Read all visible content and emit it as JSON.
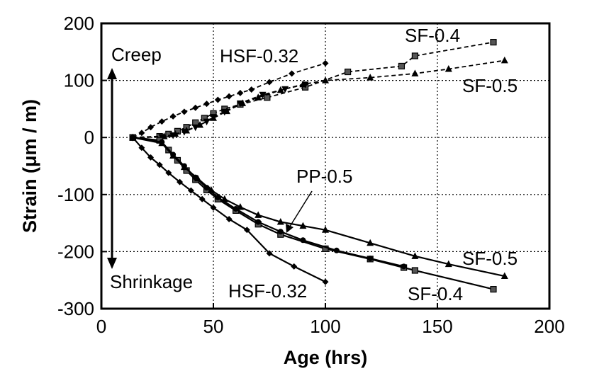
{
  "chart_data": {
    "type": "line",
    "title": "",
    "xlabel": "Age (hrs)",
    "ylabel": "Strain (μm / m)",
    "xlim": [
      0,
      200
    ],
    "ylim": [
      -300,
      200
    ],
    "x_ticks": [
      0,
      50,
      100,
      150,
      200
    ],
    "y_ticks": [
      -300,
      -200,
      -100,
      0,
      100,
      200
    ],
    "grid": true,
    "legend": "none",
    "annotations": {
      "creep": "Creep",
      "shrinkage": "Shrinkage",
      "hsf_creep": "HSF-0.32",
      "sf04_creep": "SF-0.4",
      "sf05_creep": "SF-0.5",
      "pp": "PP-0.5",
      "sf05_shrink": "SF-0.5",
      "hsf_shrink": "HSF-0.32",
      "sf04_shrink": "SF-0.4"
    },
    "series": [
      {
        "group": "creep",
        "style": "dashed",
        "marker": "diamond",
        "x": [
          14,
          18,
          22,
          27,
          32,
          37,
          42,
          47,
          52,
          57,
          62,
          67,
          75,
          85,
          100
        ],
        "y": [
          0,
          8,
          18,
          28,
          37,
          45,
          52,
          59,
          66,
          72,
          78,
          84,
          97,
          112,
          130
        ]
      },
      {
        "group": "creep",
        "style": "dashed",
        "marker": "square",
        "x": [
          14,
          26,
          30,
          34,
          38,
          42,
          46,
          50,
          55,
          62,
          74,
          91,
          110,
          134,
          140,
          175
        ],
        "y": [
          0,
          2,
          6,
          11,
          18,
          26,
          34,
          42,
          50,
          58,
          70,
          88,
          115,
          125,
          143,
          167
        ]
      },
      {
        "group": "creep",
        "style": "dashed",
        "marker": "inverted-triangle",
        "x": [
          14,
          27,
          32,
          37,
          42,
          47,
          50,
          55,
          62,
          72,
          82,
          91
        ],
        "y": [
          0,
          1,
          4,
          10,
          18,
          28,
          36,
          45,
          60,
          75,
          85,
          93
        ]
      },
      {
        "group": "creep",
        "style": "dashed",
        "marker": "triangle",
        "x": [
          14,
          28,
          33,
          38,
          44,
          50,
          56,
          63,
          70,
          80,
          90,
          100,
          120,
          140,
          155,
          180
        ],
        "y": [
          0,
          2,
          6,
          12,
          22,
          34,
          46,
          60,
          70,
          83,
          93,
          100,
          105,
          112,
          120,
          135
        ]
      },
      {
        "group": "shrinkage",
        "style": "solid",
        "marker": "diamond",
        "x": [
          14,
          18,
          22,
          26,
          30,
          35,
          40,
          45,
          50,
          57,
          65,
          75,
          86,
          100
        ],
        "y": [
          0,
          -18,
          -35,
          -48,
          -62,
          -78,
          -93,
          -108,
          -123,
          -143,
          -162,
          -203,
          -226,
          -253
        ]
      },
      {
        "group": "shrinkage",
        "style": "solid",
        "marker": "square",
        "x": [
          14,
          26,
          30,
          34,
          38,
          42,
          47,
          52,
          60,
          70,
          80,
          100,
          120,
          135,
          140,
          175
        ],
        "y": [
          0,
          -5,
          -22,
          -40,
          -58,
          -74,
          -92,
          -108,
          -128,
          -152,
          -170,
          -195,
          -213,
          -228,
          -233,
          -266
        ]
      },
      {
        "group": "shrinkage",
        "style": "solid",
        "marker": "circle",
        "x": [
          14,
          27,
          32,
          37,
          42,
          47,
          52,
          60,
          70,
          80,
          90,
          105,
          120,
          135
        ],
        "y": [
          0,
          -8,
          -30,
          -50,
          -70,
          -88,
          -105,
          -125,
          -148,
          -165,
          -180,
          -198,
          -212,
          -226
        ]
      },
      {
        "group": "shrinkage",
        "style": "solid",
        "marker": "triangle",
        "x": [
          14,
          27,
          32,
          37,
          43,
          49,
          55,
          62,
          70,
          80,
          90,
          100,
          120,
          140,
          155,
          180
        ],
        "y": [
          0,
          -10,
          -32,
          -52,
          -72,
          -92,
          -108,
          -122,
          -136,
          -148,
          -155,
          -162,
          -185,
          -208,
          -222,
          -243
        ]
      }
    ]
  }
}
